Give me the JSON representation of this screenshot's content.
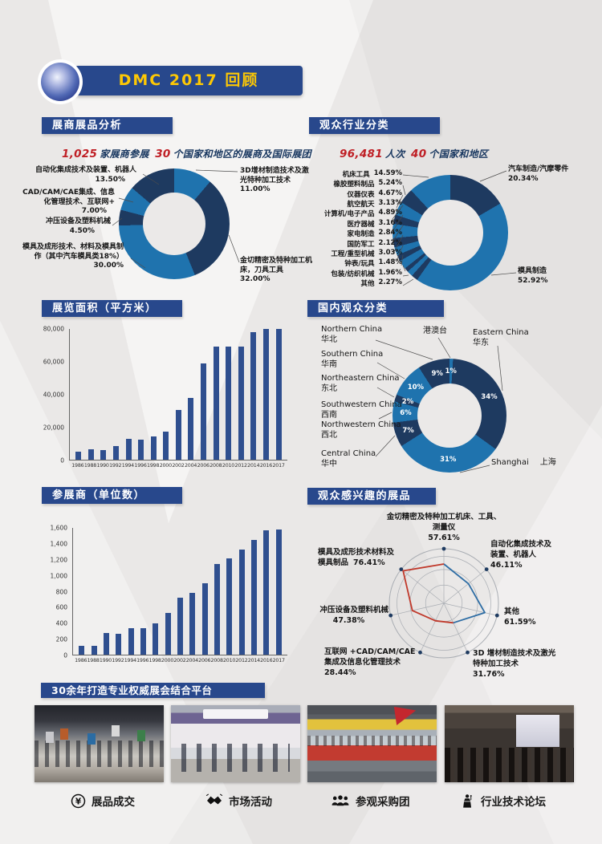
{
  "header": {
    "title": "DMC 2017 回顾"
  },
  "palette": {
    "navy": "#1e3a60",
    "blue": "#1f73ae",
    "bar": "#2f4f8f",
    "header_blue": "#28488c",
    "accent_red": "#bf1e24",
    "title_yellow": "#fdc804",
    "page_bg": "#eae8e7",
    "radar_blue": "#2e6da4",
    "radar_red": "#c0392b"
  },
  "sections": {
    "s1": {
      "heading": "展商展品分析",
      "stat": {
        "num1": "1,025",
        "text1": "家展商参展",
        "num2": "30",
        "text2": "个国家和地区的展商及国际展团"
      }
    },
    "s2": {
      "heading": "观众行业分类",
      "stat": {
        "num1": "96,481",
        "text1": "人次",
        "num2": "40",
        "text2": "个国家和地区"
      }
    },
    "s3": {
      "heading": "展览面积（平方米）"
    },
    "s4": {
      "heading": "国内观众分类"
    },
    "s5": {
      "heading": "参展商（单位数）"
    },
    "s6": {
      "heading": "观众感兴趣的展品"
    },
    "s7": {
      "heading": "30余年打造专业权威展会结合平台"
    }
  },
  "chart_data": [
    {
      "id": "exhibitor-products",
      "type": "pie",
      "title": "展商展品分析",
      "segments": [
        {
          "label": "3D增材制造技术及激光特种加工技术",
          "pct": "11.00%",
          "value": 11,
          "color": "blue"
        },
        {
          "label": "金切精密及特种加工机床，刀具工具",
          "pct": "32.00%",
          "value": 32,
          "color": "navy"
        },
        {
          "label": "模具及成形技术、材料及模具制作（其中汽车模具类18%）",
          "pct": "30.00%",
          "value": 30,
          "color": "blue"
        },
        {
          "label": "冲压设备及塑料机械",
          "pct": "4.50%",
          "value": 4.5,
          "color": "navy"
        },
        {
          "label": "CAD/CAM/CAE集成、信息化管理技术、互联网+",
          "pct": "7.00%",
          "value": 7,
          "color": "blue"
        },
        {
          "label": "自动化集成技术及装置、机器人",
          "pct": "13.50%",
          "value": 13.5,
          "color": "navy"
        }
      ]
    },
    {
      "id": "visitor-industry",
      "type": "pie",
      "title": "观众行业分类",
      "segments": [
        {
          "label": "汽车制造/汽摩零件",
          "pct": "20.34%",
          "value": 20.34,
          "color": "navy"
        },
        {
          "label": "模具制造",
          "pct": "52.92%",
          "value": 52.92,
          "color": "blue"
        },
        {
          "label": "其他",
          "pct": "2.27%",
          "value": 2.27,
          "color": "navy"
        },
        {
          "label": "包装/纺织机械",
          "pct": "1.96%",
          "value": 1.96,
          "color": "blue"
        },
        {
          "label": "钟表/玩具",
          "pct": "1.48%",
          "value": 1.48,
          "color": "navy"
        },
        {
          "label": "工程/重型机械",
          "pct": "3.03%",
          "value": 3.03,
          "color": "blue"
        },
        {
          "label": "国防军工",
          "pct": "2.12%",
          "value": 2.12,
          "color": "navy"
        },
        {
          "label": "家电制造",
          "pct": "2.84%",
          "value": 2.84,
          "color": "blue"
        },
        {
          "label": "医疗器械",
          "pct": "3.16%",
          "value": 3.16,
          "color": "navy"
        },
        {
          "label": "计算机/电子产品",
          "pct": "4.89%",
          "value": 4.89,
          "color": "blue"
        },
        {
          "label": "航空航天",
          "pct": "3.13%",
          "value": 3.13,
          "color": "navy"
        },
        {
          "label": "仪器仪表",
          "pct": "4.67%",
          "value": 4.67,
          "color": "blue"
        },
        {
          "label": "橡胶塑料制品",
          "pct": "5.24%",
          "value": 5.24,
          "color": "navy"
        },
        {
          "label": "机床工具",
          "pct": "14.59%",
          "value": 14.59,
          "color": "blue"
        }
      ],
      "left_list": [
        13,
        12,
        11,
        10,
        9,
        8,
        7,
        6,
        5,
        4,
        3,
        2
      ]
    },
    {
      "id": "exhibition-area",
      "type": "bar",
      "title": "展览面积（平方米）",
      "categories": [
        "1986",
        "1988",
        "1990",
        "1992",
        "1994",
        "1996",
        "1998",
        "2000",
        "2002",
        "2004",
        "2006",
        "2008",
        "2010",
        "2012",
        "2014",
        "2016",
        "2017"
      ],
      "values": [
        5000,
        6500,
        6000,
        8400,
        13000,
        12500,
        14000,
        17000,
        30500,
        38000,
        59000,
        69000,
        69000,
        69000,
        78000,
        80000,
        80000
      ],
      "ymax": 80000,
      "ylim": [
        0,
        80000
      ],
      "yticks": [
        "80,000",
        "60,000",
        "40,000",
        "20,000",
        "0"
      ]
    },
    {
      "id": "domestic-visitors",
      "type": "pie",
      "title": "国内观众分类",
      "pct_in_ring": true,
      "segments": [
        {
          "zh": "港澳台",
          "pct": "1%",
          "value": 1,
          "color": "blue"
        },
        {
          "en": "Eastern China",
          "zh": "华东",
          "pct": "34%",
          "value": 34,
          "color": "navy"
        },
        {
          "en": "Shanghai",
          "zh": "上海",
          "pct": "31%",
          "value": 31,
          "color": "blue"
        },
        {
          "en": "Central China",
          "zh": "华中",
          "pct": "7%",
          "value": 7,
          "color": "navy"
        },
        {
          "en": "Southwestern China",
          "zh": "西南",
          "en2": "Northwestern China",
          "zh2": "西北",
          "pct": "6%",
          "value": 6,
          "color": "blue"
        },
        {
          "en": "Northeastern China",
          "zh": "东北",
          "pct": "2%",
          "value": 2,
          "color": "navy"
        },
        {
          "en": "Southern China",
          "zh": "华南",
          "pct": "10%",
          "value": 10,
          "color": "blue"
        },
        {
          "en": "Northern China",
          "zh": "华北",
          "pct": "9%",
          "value": 9,
          "color": "navy"
        }
      ]
    },
    {
      "id": "exhibitor-count",
      "type": "bar",
      "title": "参展商（单位数）",
      "categories": [
        "1986",
        "1988",
        "1990",
        "1992",
        "1994",
        "1996",
        "1998",
        "2000",
        "2002",
        "2004",
        "2006",
        "2008",
        "2010",
        "2012",
        "2014",
        "2016",
        "2017"
      ],
      "values": [
        110,
        110,
        270,
        260,
        330,
        330,
        395,
        530,
        720,
        775,
        905,
        1140,
        1220,
        1330,
        1450,
        1565,
        1580
      ],
      "ymax": 1600,
      "ylim": [
        0,
        1600
      ],
      "yticks": [
        "1,600",
        "1,400",
        "1,200",
        "1,000",
        "800",
        "600",
        "400",
        "200",
        "0"
      ]
    },
    {
      "id": "visitor-interest",
      "type": "radar",
      "title": "观众感兴趣的展品",
      "max": 80,
      "axes": [
        {
          "label": "金切精密及特种加工机床、工具、测量仪",
          "pct": "57.61%",
          "value": 57.61
        },
        {
          "label": "自动化集成技术及装置、机器人",
          "pct": "46.11%",
          "value": 46.11
        },
        {
          "label": "其他",
          "pct": "61.59%",
          "value": 61.59
        },
        {
          "label": "3D 增材制造技术及激光特种加工技术",
          "pct": "31.76%",
          "value": 31.76
        },
        {
          "label": "互联网 +CAD/CAM/CAE 集成及信息化管理技术",
          "pct": "28.44%",
          "value": 28.44
        },
        {
          "label": "冲压设备及塑料机械",
          "pct": "47.38%",
          "value": 47.38
        },
        {
          "label": "模具及成形技术材料及模具制品",
          "pct": "76.41%",
          "value": 76.41
        }
      ]
    }
  ],
  "features": [
    {
      "icon": "yen-circle-icon",
      "label": "展品成交"
    },
    {
      "icon": "handshake-icon",
      "label": "市场活动"
    },
    {
      "icon": "people-group-icon",
      "label": "参观采购团"
    },
    {
      "icon": "podium-speaker-icon",
      "label": "行业技术论坛"
    }
  ]
}
